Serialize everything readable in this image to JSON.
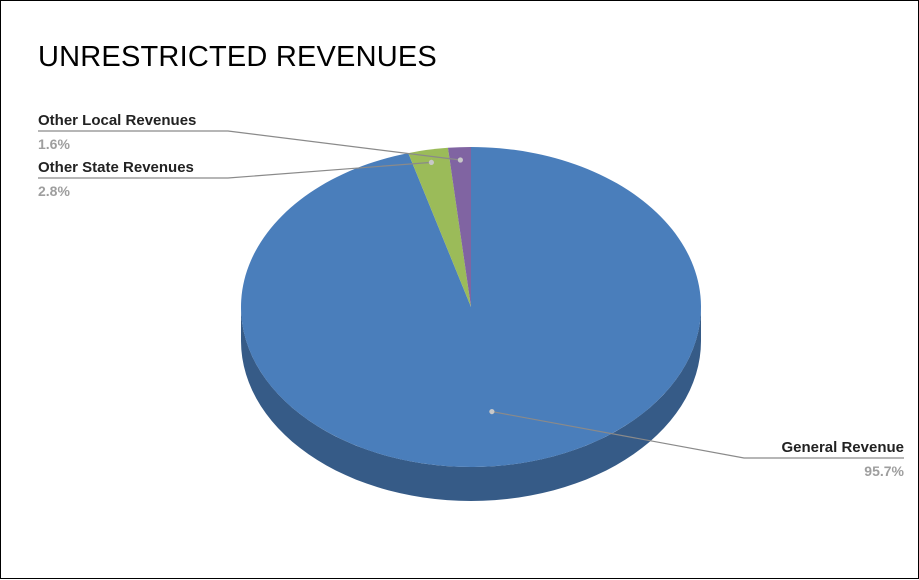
{
  "chart_data": {
    "type": "pie",
    "title": "UNRESTRICTED REVENUES",
    "three_d": true,
    "slices": [
      {
        "label": "General Revenue",
        "value": 95.7,
        "display": "95.7%",
        "color": "#4a7ebb",
        "side_color": "#365b87"
      },
      {
        "label": "Other State Revenues",
        "value": 2.8,
        "display": "2.8%",
        "color": "#9bbb59",
        "side_color": "#6f8740"
      },
      {
        "label": "Other Local Revenues",
        "value": 1.6,
        "display": "1.6%",
        "color": "#8064a2",
        "side_color": "#5c4875"
      }
    ]
  }
}
